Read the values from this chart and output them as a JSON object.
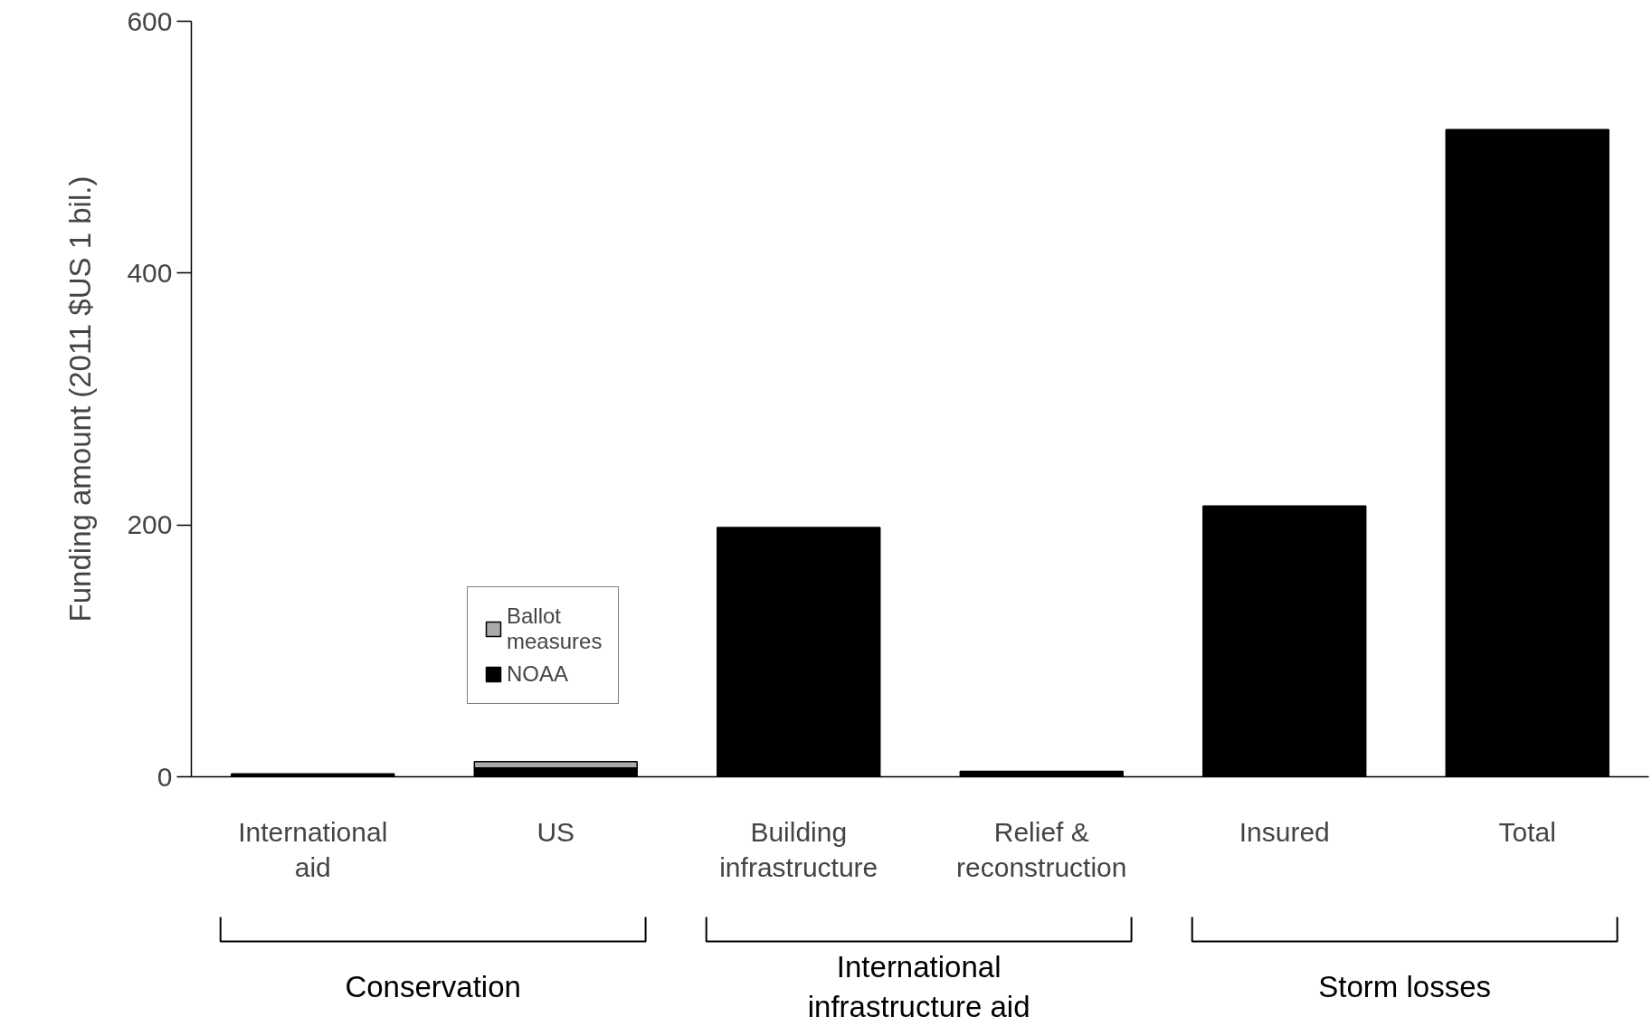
{
  "chart_data": {
    "type": "bar",
    "ylabel": "Funding amount (2011 $US 1 bil.)",
    "categories": [
      "International\naid",
      "US",
      "Building\ninfrastructure",
      "Relief &\nreconstruction",
      "Insured",
      "Total"
    ],
    "stacked": true,
    "series": [
      {
        "color": "#000000",
        "values": [
          2.4,
          null,
          198,
          4.3,
          215,
          514
        ]
      },
      {
        "name": "NOAA",
        "color": "#000000",
        "values": [
          null,
          7,
          null,
          null,
          null,
          null
        ]
      },
      {
        "name": "Ballot\nmeasures",
        "color": "#aaaaaa",
        "values": [
          null,
          5,
          null,
          null,
          null,
          null
        ]
      }
    ],
    "ylim": [
      0,
      600
    ],
    "yticks": [
      0,
      200,
      400,
      600
    ],
    "grid": false,
    "legend": "bottom left",
    "annotations": [
      "Conservation",
      "International\ninfrastructure aid",
      "Storm losses"
    ]
  }
}
